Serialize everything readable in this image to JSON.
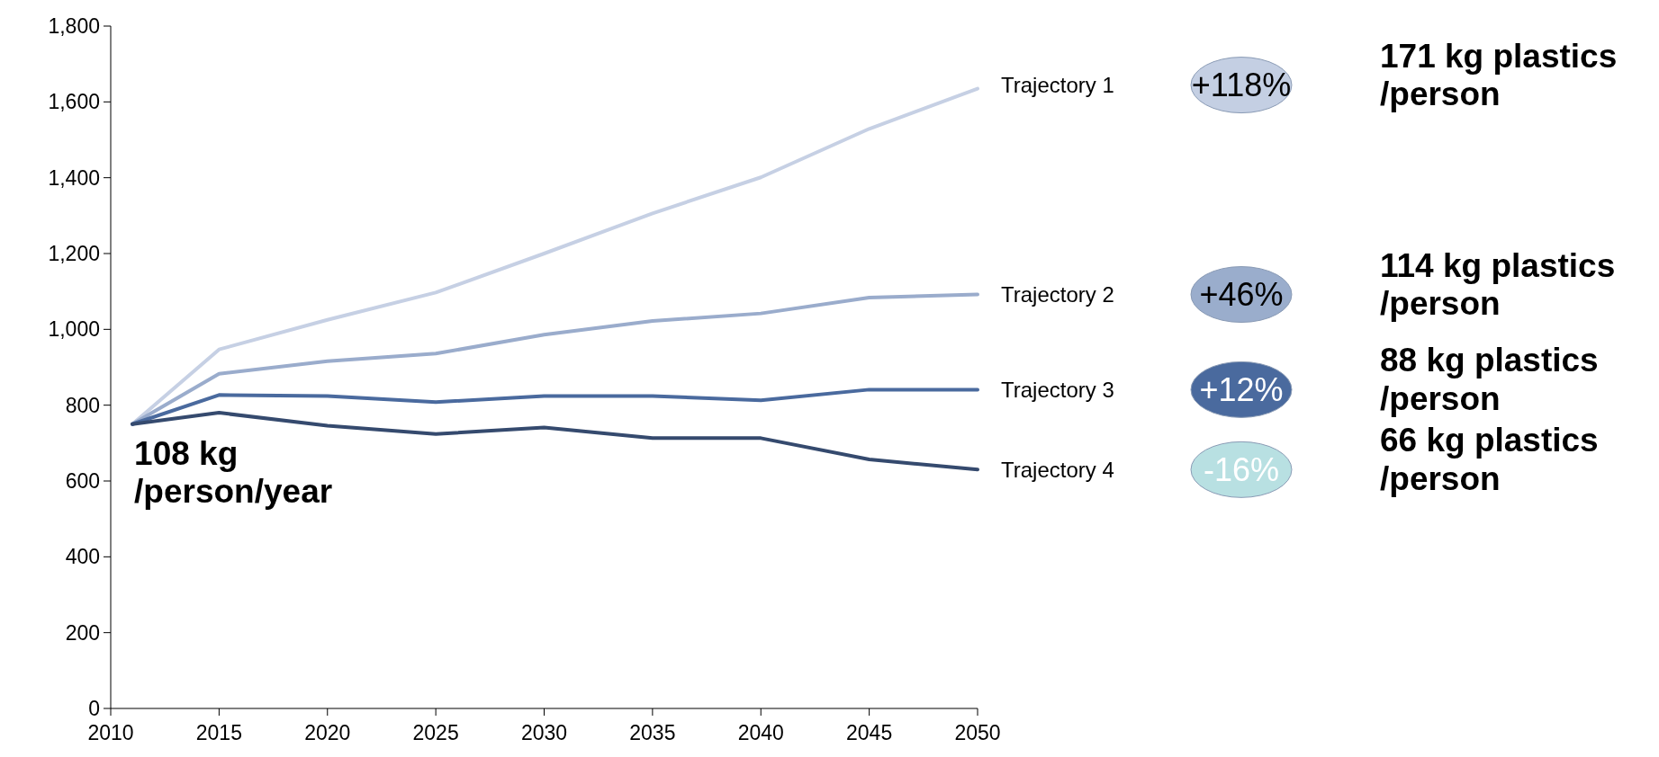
{
  "chart_data": {
    "type": "line",
    "x": [
      2011,
      2015,
      2020,
      2025,
      2030,
      2035,
      2040,
      2045,
      2050
    ],
    "series": [
      {
        "name": "Trajectory 1",
        "color": "#c6d0e4",
        "values": [
          750,
          947,
          1025,
          1097,
          1200,
          1306,
          1401,
          1529,
          1635
        ]
      },
      {
        "name": "Trajectory 2",
        "color": "#9aaccc",
        "values": [
          750,
          883,
          916,
          936,
          986,
          1022,
          1042,
          1084,
          1092
        ]
      },
      {
        "name": "Trajectory 3",
        "color": "#4a6a9e",
        "values": [
          750,
          827,
          824,
          808,
          824,
          824,
          813,
          841,
          841
        ]
      },
      {
        "name": "Trajectory 4",
        "color": "#354a6e",
        "values": [
          750,
          780,
          746,
          724,
          741,
          713,
          713,
          657,
          630
        ]
      }
    ],
    "xlim": [
      2010,
      2050
    ],
    "xticks": [
      2010,
      2015,
      2020,
      2025,
      2030,
      2035,
      2040,
      2045,
      2050
    ],
    "ylim": [
      0,
      1800
    ],
    "yticks": [
      {
        "value": 0,
        "label": "0"
      },
      {
        "value": 200,
        "label": "200"
      },
      {
        "value": 400,
        "label": "400"
      },
      {
        "value": 600,
        "label": "600"
      },
      {
        "value": 800,
        "label": "800"
      },
      {
        "value": 1000,
        "label": "1,000"
      },
      {
        "value": 1200,
        "label": "1,200"
      },
      {
        "value": 1400,
        "label": "1,400"
      },
      {
        "value": 1600,
        "label": "1,600"
      },
      {
        "value": 1800,
        "label": "1,800"
      }
    ],
    "grid": false,
    "marker": "none",
    "line_style": "solid",
    "annotations": [
      {
        "text": "108 kg\n/person/year",
        "x": 2011,
        "y": 750
      },
      "+118%",
      "171 kg plastics\n/person",
      "+46%",
      "114 kg plastics\n/person",
      "+12%",
      "88 kg plastics\n/person",
      "-16%",
      "66 kg plastics\n/person"
    ]
  }
}
